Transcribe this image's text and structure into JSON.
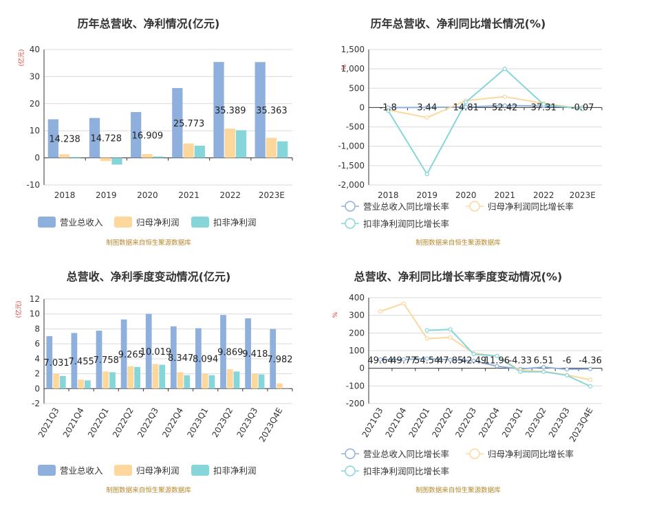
{
  "source_note": "制图数据来自恒生聚源数据库",
  "chart_data": [
    {
      "type": "bar",
      "title": "历年总营收、净利情况(亿元)",
      "unit_label": "(亿元)",
      "categories": [
        "2018",
        "2019",
        "2020",
        "2021",
        "2022",
        "2023E"
      ],
      "ylim": [
        -10,
        40
      ],
      "yticks": [
        -10,
        0,
        10,
        20,
        30,
        40
      ],
      "series": [
        {
          "name": "营业总收入",
          "color": "#8fb0dc",
          "values": [
            14.238,
            14.728,
            16.909,
            25.773,
            35.389,
            35.363
          ],
          "labels": [
            "14.238",
            "14.728",
            "16.909",
            "25.773",
            "35.389",
            "35.363"
          ]
        },
        {
          "name": "归母净利润",
          "color": "#fdd79b",
          "values": [
            1.3,
            -1.2,
            1.4,
            5.3,
            10.8,
            7.4
          ]
        },
        {
          "name": "扣非净利润",
          "color": "#86d6d9",
          "values": [
            0.3,
            -2.5,
            0.5,
            4.5,
            10.2,
            6.1
          ]
        }
      ],
      "legend_position": "bottom"
    },
    {
      "type": "line",
      "title": "历年总营收、净利同比增长情况(%)",
      "unit_label": "%",
      "categories": [
        "2018",
        "2019",
        "2020",
        "2021",
        "2022",
        "2023E"
      ],
      "ylim": [
        -2000,
        1500
      ],
      "yticks": [
        -2000,
        -1500,
        -1000,
        -500,
        0,
        500,
        1000,
        1500
      ],
      "ytick_labels": [
        "-2,000",
        "-1,500",
        "-1,000",
        "-500",
        "0",
        "500",
        "1,000",
        "1,500"
      ],
      "series": [
        {
          "name": "营业总收入同比增长率",
          "color": "#8fb0dc",
          "values": [
            -1.8,
            3.44,
            14.81,
            52.42,
            37.31,
            -0.07
          ],
          "labels": [
            "-1.8",
            "3.44",
            "14.81",
            "52.42",
            "37.31",
            "-0.07"
          ]
        },
        {
          "name": "归母净利润同比增长率",
          "color": "#fdd79b",
          "values": [
            -60,
            -260,
            180,
            280,
            110,
            -30
          ]
        },
        {
          "name": "扣非净利润同比增长率",
          "color": "#86d6d9",
          "values": [
            -80,
            -1720,
            140,
            1000,
            80,
            -40
          ]
        }
      ],
      "legend_position": "bottom"
    },
    {
      "type": "bar",
      "title": "总营收、净利季度变动情况(亿元)",
      "unit_label": "(亿元)",
      "categories": [
        "2021Q3",
        "2021Q4",
        "2022Q1",
        "2022Q2",
        "2022Q3",
        "2022Q4",
        "2023Q1",
        "2023Q2",
        "2023Q3",
        "2023Q4E"
      ],
      "ylim": [
        -2,
        12
      ],
      "yticks": [
        -2,
        0,
        2,
        4,
        6,
        8,
        10,
        12
      ],
      "series": [
        {
          "name": "营业总收入",
          "color": "#8fb0dc",
          "values": [
            7.031,
            7.455,
            7.758,
            9.265,
            10.019,
            8.347,
            8.094,
            9.869,
            9.418,
            7.982
          ],
          "labels": [
            "7.031",
            "7.455",
            "7.758",
            "9.265",
            "10.019",
            "8.347",
            "8.094",
            "9.869",
            "9.418",
            "7.982"
          ]
        },
        {
          "name": "归母净利润",
          "color": "#fdd79b",
          "values": [
            2.0,
            1.2,
            2.3,
            3.0,
            3.3,
            2.2,
            2.0,
            2.6,
            2.0,
            0.7
          ]
        },
        {
          "name": "扣非净利润",
          "color": "#86d6d9",
          "values": [
            1.7,
            1.1,
            2.2,
            2.9,
            3.2,
            1.8,
            1.8,
            2.3,
            1.9,
            0
          ]
        }
      ],
      "legend_position": "bottom"
    },
    {
      "type": "line",
      "title": "总营收、净利同比增长率季度变动情况(%)",
      "unit_label": "%",
      "categories": [
        "2021Q3",
        "2021Q4",
        "2022Q1",
        "2022Q2",
        "2022Q3",
        "2022Q4",
        "2023Q1",
        "2023Q2",
        "2023Q3",
        "2023Q4E"
      ],
      "ylim": [
        -200,
        400
      ],
      "yticks": [
        -200,
        -100,
        0,
        100,
        200,
        300,
        400
      ],
      "series": [
        {
          "name": "营业总收入同比增长率",
          "color": "#8fb0dc",
          "values": [
            49.64,
            49.77,
            54.54,
            47.85,
            42.49,
            11.96,
            -4.33,
            6.51,
            -6,
            -4.36
          ],
          "labels": [
            "49.64",
            "49.77",
            "54.54",
            "47.85",
            "42.49",
            "11.96",
            "-4.33",
            "6.51",
            "-6",
            "-4.36"
          ]
        },
        {
          "name": "归母净利润同比增长率",
          "color": "#fdd79b",
          "values": [
            322,
            368,
            168,
            175,
            85,
            70,
            -12,
            -18,
            -38,
            -65
          ]
        },
        {
          "name": "扣非净利润同比增长率",
          "color": "#86d6d9",
          "values": [
            null,
            null,
            215,
            220,
            80,
            70,
            -20,
            -20,
            -40,
            -102
          ]
        }
      ],
      "legend_position": "bottom"
    }
  ]
}
